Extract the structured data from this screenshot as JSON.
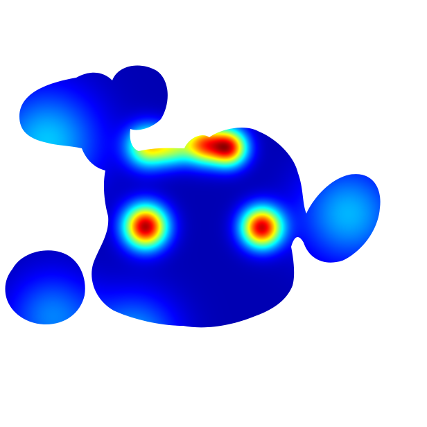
{
  "chart_data": {
    "type": "heatmap",
    "title": "",
    "xlabel": "",
    "ylabel": "",
    "colormap": "jet",
    "background": "#ffffff",
    "grid": false,
    "legend": "none",
    "xlim": [
      0,
      1
    ],
    "ylim": [
      0,
      1
    ],
    "value_range": [
      0,
      1
    ],
    "hotspots": [
      {
        "x": 0.34,
        "y": 0.53,
        "intensity": 1.0,
        "spread": 0.035
      },
      {
        "x": 0.612,
        "y": 0.532,
        "intensity": 0.96,
        "spread": 0.033
      },
      {
        "x": 0.535,
        "y": 0.345,
        "intensity": 0.88,
        "spread": 0.03
      },
      {
        "x": 0.475,
        "y": 0.338,
        "intensity": 0.72,
        "spread": 0.032
      },
      {
        "x": 0.345,
        "y": 0.342,
        "intensity": 0.62,
        "spread": 0.034
      },
      {
        "x": 0.405,
        "y": 0.345,
        "intensity": 0.4,
        "spread": 0.03
      },
      {
        "x": 0.11,
        "y": 0.33,
        "intensity": 0.3,
        "spread": 0.085
      },
      {
        "x": 0.815,
        "y": 0.5,
        "intensity": 0.28,
        "spread": 0.08
      },
      {
        "x": 0.315,
        "y": 0.79,
        "intensity": 0.26,
        "spread": 0.07
      },
      {
        "x": 0.12,
        "y": 0.74,
        "intensity": 0.22,
        "spread": 0.07
      }
    ]
  }
}
